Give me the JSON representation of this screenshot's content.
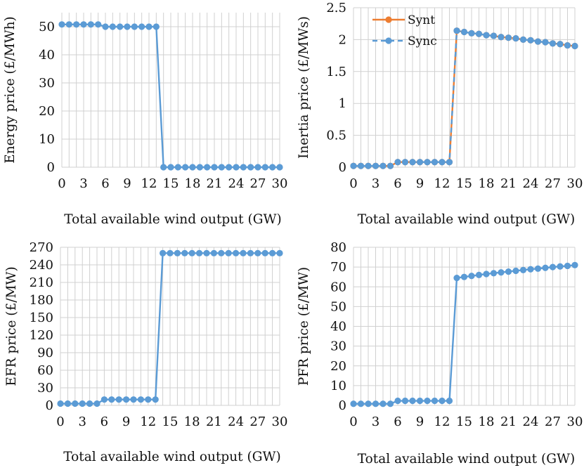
{
  "colors": {
    "sync": "#5b9bd5",
    "synt": "#ed7d31",
    "grid": "#d0d0d0"
  },
  "chart_data": [
    {
      "type": "line",
      "xlabel": "Total available wind output (GW)",
      "ylabel": "Energy price (£/MWh)",
      "xlim": [
        0,
        30
      ],
      "xticks": [
        0,
        3,
        6,
        9,
        12,
        15,
        18,
        21,
        24,
        27,
        30
      ],
      "ylim": [
        0,
        55
      ],
      "yticks": [
        0,
        10,
        20,
        30,
        40,
        50
      ],
      "series": [
        {
          "name": "Sync",
          "x": [
            0,
            1,
            2,
            3,
            4,
            5,
            6,
            7,
            8,
            9,
            10,
            11,
            12,
            13,
            14,
            15,
            16,
            17,
            18,
            19,
            20,
            21,
            22,
            23,
            24,
            25,
            26,
            27,
            28,
            29,
            30
          ],
          "values": [
            50.8,
            50.8,
            50.8,
            50.8,
            50.8,
            50.8,
            50,
            50,
            50,
            50,
            50,
            50,
            50,
            50,
            0,
            0,
            0,
            0,
            0,
            0,
            0,
            0,
            0,
            0,
            0,
            0,
            0,
            0,
            0,
            0,
            0
          ]
        }
      ]
    },
    {
      "type": "line",
      "xlabel": "Total available wind output (GW)",
      "ylabel": "Inertia price (£/MWs)",
      "xlim": [
        0,
        30
      ],
      "xticks": [
        0,
        3,
        6,
        9,
        12,
        15,
        18,
        21,
        24,
        27,
        30
      ],
      "ylim": [
        0,
        2.5
      ],
      "yticks": [
        0,
        0.5,
        1,
        1.5,
        2,
        2.5
      ],
      "legend": "top-left",
      "series": [
        {
          "name": "Synt",
          "x": [
            0,
            1,
            2,
            3,
            4,
            5,
            6,
            7,
            8,
            9,
            10,
            11,
            12,
            13,
            14,
            15,
            16,
            17,
            18,
            19,
            20,
            21,
            22,
            23,
            24,
            25,
            26,
            27,
            28,
            29,
            30
          ],
          "values": [
            0.02,
            0.02,
            0.02,
            0.02,
            0.02,
            0.02,
            0.08,
            0.08,
            0.08,
            0.08,
            0.08,
            0.08,
            0.08,
            0.08,
            2.14,
            2.12,
            2.1,
            2.09,
            2.07,
            2.06,
            2.04,
            2.03,
            2.02,
            2.0,
            1.99,
            1.97,
            1.96,
            1.94,
            1.93,
            1.91,
            1.9
          ]
        },
        {
          "name": "Sync",
          "x": [
            0,
            1,
            2,
            3,
            4,
            5,
            6,
            7,
            8,
            9,
            10,
            11,
            12,
            13,
            14,
            15,
            16,
            17,
            18,
            19,
            20,
            21,
            22,
            23,
            24,
            25,
            26,
            27,
            28,
            29,
            30
          ],
          "values": [
            0.02,
            0.02,
            0.02,
            0.02,
            0.02,
            0.02,
            0.08,
            0.08,
            0.08,
            0.08,
            0.08,
            0.08,
            0.08,
            0.08,
            2.14,
            2.12,
            2.1,
            2.09,
            2.07,
            2.06,
            2.04,
            2.03,
            2.02,
            2.0,
            1.99,
            1.97,
            1.96,
            1.94,
            1.93,
            1.91,
            1.9
          ]
        }
      ]
    },
    {
      "type": "line",
      "xlabel": "Total available wind output (GW)",
      "ylabel": "EFR price (£/MW)",
      "xlim": [
        0,
        30
      ],
      "xticks": [
        0,
        3,
        6,
        9,
        12,
        15,
        18,
        21,
        24,
        27,
        30
      ],
      "ylim": [
        0,
        270
      ],
      "yticks": [
        0,
        30,
        60,
        90,
        120,
        150,
        180,
        210,
        240,
        270
      ],
      "series": [
        {
          "name": "Sync",
          "x": [
            0,
            1,
            2,
            3,
            4,
            5,
            6,
            7,
            8,
            9,
            10,
            11,
            12,
            13,
            14,
            15,
            16,
            17,
            18,
            19,
            20,
            21,
            22,
            23,
            24,
            25,
            26,
            27,
            28,
            29,
            30
          ],
          "values": [
            3,
            3,
            3,
            3,
            3,
            3,
            10,
            10,
            10,
            10,
            10,
            10,
            10,
            10,
            260,
            260,
            260,
            260,
            260,
            260,
            260,
            260,
            260,
            260,
            260,
            260,
            260,
            260,
            260,
            260,
            260
          ]
        }
      ]
    },
    {
      "type": "line",
      "xlabel": "Total available wind output (GW)",
      "ylabel": "PFR price (£/MW)",
      "xlim": [
        0,
        30
      ],
      "xticks": [
        0,
        3,
        6,
        9,
        12,
        15,
        18,
        21,
        24,
        27,
        30
      ],
      "ylim": [
        0,
        80
      ],
      "yticks": [
        0,
        10,
        20,
        30,
        40,
        50,
        60,
        70,
        80
      ],
      "series": [
        {
          "name": "Sync",
          "x": [
            0,
            1,
            2,
            3,
            4,
            5,
            6,
            7,
            8,
            9,
            10,
            11,
            12,
            13,
            14,
            15,
            16,
            17,
            18,
            19,
            20,
            21,
            22,
            23,
            24,
            25,
            26,
            27,
            28,
            29,
            30
          ],
          "values": [
            0.8,
            0.8,
            0.8,
            0.8,
            0.8,
            0.8,
            2.3,
            2.3,
            2.3,
            2.3,
            2.3,
            2.3,
            2.3,
            2.3,
            64.5,
            65,
            65.5,
            66,
            66.5,
            66.9,
            67.3,
            67.7,
            68.1,
            68.5,
            68.9,
            69.2,
            69.6,
            70,
            70.3,
            70.6,
            71
          ]
        }
      ]
    }
  ]
}
